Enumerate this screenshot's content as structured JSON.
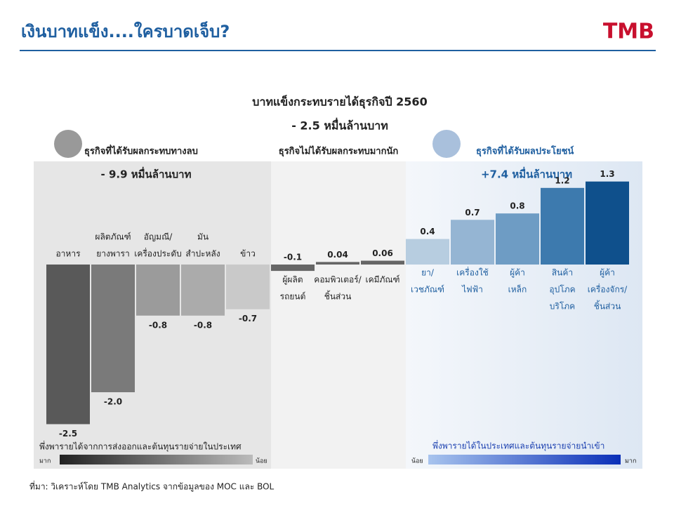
{
  "header": {
    "title": "เงินบาทแข็ง....ใครบาดเจ็บ?",
    "logo": "TMB"
  },
  "chart_data": {
    "type": "bar",
    "title": "บาทแข็งกระทบรายได้ธุรกิจปี  2560",
    "subtitle": "- 2.5 หมื่นล้านบาท",
    "groups": [
      {
        "title": "ธุรกิจที่ได้รับผลกระทบทางลบ",
        "total": "- 9.9 หมื่นล้านบาท",
        "note": "พึ่งพารายได้จากการส่งออกและต้นทุนรายจ่ายในประเทศ",
        "scale": [
          "มาก",
          "น้อย"
        ]
      },
      {
        "title": "ธุรกิจไม่ได้รับผลกระทบมากนัก"
      },
      {
        "title": "ธุรกิจที่ได้รับผลประโยชน์",
        "total": "+7.4 หมื่นล้านบาท",
        "note": "พึ่งพารายได้ในประเทศและต้นทุนรายจ่ายนำเข้า",
        "scale": [
          "น้อย",
          "มาก"
        ]
      }
    ],
    "categories": [
      [
        "อาหาร"
      ],
      [
        "ผลิตภัณฑ์",
        "ยางพารา"
      ],
      [
        "อัญมณี/",
        "เครื่องประดับ"
      ],
      [
        "มัน",
        "สำปะหลัง"
      ],
      [
        "ข้าว"
      ],
      [
        "ผู้ผลิต",
        "รถยนต์"
      ],
      [
        "คอมพิวเตอร์/",
        "ชิ้นส่วน"
      ],
      [
        "เคมีภัณฑ์"
      ],
      [
        "ยา/",
        "เวชภัณฑ์"
      ],
      [
        "เครื่องใช้",
        "ไฟฟ้า"
      ],
      [
        "ผู้ค้า",
        "เหล็ก"
      ],
      [
        "สินค้า",
        "อุปโภค",
        "บริโภค"
      ],
      [
        "ผู้ค้า",
        "เครื่องจักร/",
        "ชิ้นส่วน"
      ]
    ],
    "values": [
      -2.5,
      -2.0,
      -0.8,
      -0.8,
      -0.7,
      -0.1,
      0.04,
      0.06,
      0.4,
      0.7,
      0.8,
      1.2,
      1.3
    ],
    "value_labels": [
      "-2.5",
      "-2.0",
      "-0.8",
      "-0.8",
      "-0.7",
      "-0.1",
      "0.04",
      "0.06",
      "0.4",
      "0.7",
      "0.8",
      "1.2",
      "1.3"
    ],
    "colors": [
      "#595959",
      "#7a7a7a",
      "#9b9b9b",
      "#ababab",
      "#c9c9c9",
      "#666666",
      "#666666",
      "#666666",
      "#b7cde0",
      "#95b5d3",
      "#6e9cc4",
      "#3d7aae",
      "#0f508c"
    ]
  },
  "source": "ที่มา: วิเคราะห์โดย TMB Analytics จากข้อมูลของ MOC และ BOL"
}
